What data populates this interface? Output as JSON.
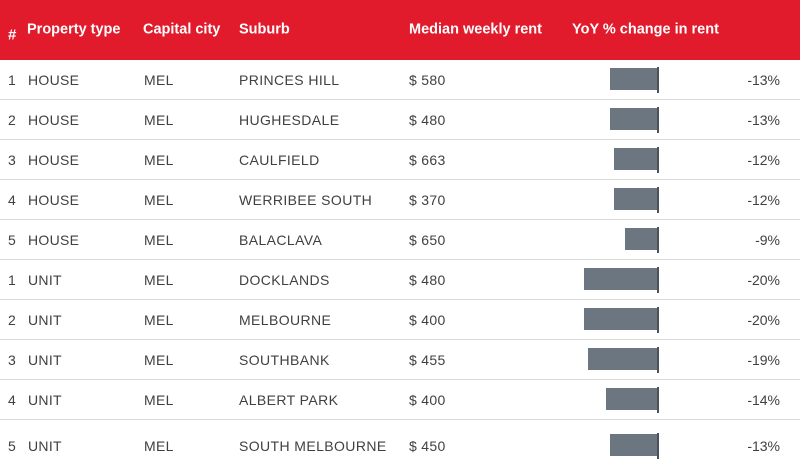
{
  "header": {
    "num": "#",
    "property_type": "Property type",
    "capital_city": "Capital city",
    "suburb": "Suburb",
    "median_rent": "Median weekly rent",
    "yoy_change": "YoY % change in rent"
  },
  "colors": {
    "header_bg": "#e11b2c",
    "bar": "#6b7681"
  },
  "rows": [
    {
      "rank": "1",
      "type": "HOUSE",
      "city": "MEL",
      "suburb": "PRINCES HILL",
      "rent": "$ 580",
      "pct_label": "-13%",
      "pct": -13
    },
    {
      "rank": "2",
      "type": "HOUSE",
      "city": "MEL",
      "suburb": "HUGHESDALE",
      "rent": "$ 480",
      "pct_label": "-13%",
      "pct": -13
    },
    {
      "rank": "3",
      "type": "HOUSE",
      "city": "MEL",
      "suburb": "CAULFIELD",
      "rent": "$ 663",
      "pct_label": "-12%",
      "pct": -12
    },
    {
      "rank": "4",
      "type": "HOUSE",
      "city": "MEL",
      "suburb": "WERRIBEE SOUTH",
      "rent": "$ 370",
      "pct_label": "-12%",
      "pct": -12
    },
    {
      "rank": "5",
      "type": "HOUSE",
      "city": "MEL",
      "suburb": "BALACLAVA",
      "rent": "$ 650",
      "pct_label": "-9%",
      "pct": -9
    },
    {
      "rank": "1",
      "type": "UNIT",
      "city": "MEL",
      "suburb": "DOCKLANDS",
      "rent": "$ 480",
      "pct_label": "-20%",
      "pct": -20
    },
    {
      "rank": "2",
      "type": "UNIT",
      "city": "MEL",
      "suburb": "MELBOURNE",
      "rent": "$ 400",
      "pct_label": "-20%",
      "pct": -20
    },
    {
      "rank": "3",
      "type": "UNIT",
      "city": "MEL",
      "suburb": "SOUTHBANK",
      "rent": "$ 455",
      "pct_label": "-19%",
      "pct": -19
    },
    {
      "rank": "4",
      "type": "UNIT",
      "city": "MEL",
      "suburb": "ALBERT PARK",
      "rent": "$ 400",
      "pct_label": "-14%",
      "pct": -14
    },
    {
      "rank": "5",
      "type": "UNIT",
      "city": "MEL",
      "suburb": "SOUTH MELBOURNE",
      "rent": "$ 450",
      "pct_label": "-13%",
      "pct": -13
    }
  ]
}
